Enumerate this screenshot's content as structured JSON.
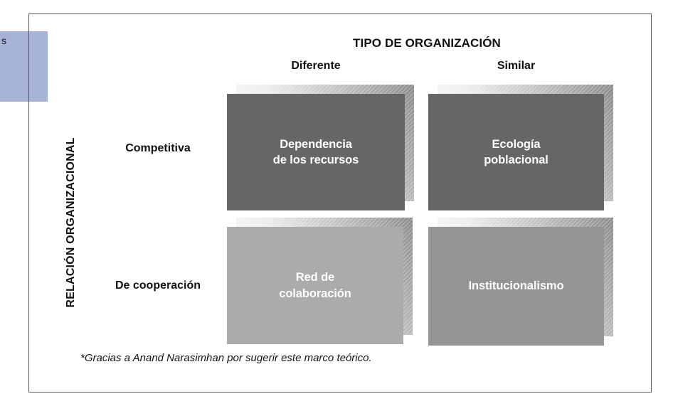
{
  "colors": {
    "frame_border": "#59595b",
    "blue_tab": "#a6b2d6",
    "quadrant_dark": "#666666",
    "quadrant_light": "#ababab",
    "quadrant_medium": "#959595",
    "cell_text": "#ffffff"
  },
  "margin_fragment": {
    "text": "s"
  },
  "diagram": {
    "title": "TIPO DE ORGANIZACIÓN",
    "columns": [
      {
        "label": "Diferente"
      },
      {
        "label": "Similar"
      }
    ],
    "row_axis_title": "RELACIÓN ORGANIZACIONAL",
    "rows": [
      {
        "label": "Competitiva"
      },
      {
        "label": "De cooperación"
      }
    ],
    "cells": [
      {
        "row": "Competitiva",
        "column": "Diferente",
        "label": "Dependencia\nde los recursos"
      },
      {
        "row": "Competitiva",
        "column": "Similar",
        "label": "Ecología\npoblacional"
      },
      {
        "row": "De cooperación",
        "column": "Diferente",
        "label": "Red de\ncolaboración"
      },
      {
        "row": "De cooperación",
        "column": "Similar",
        "label": "Institucionalismo"
      }
    ],
    "footnote": "*Gracias a Anand Narasimhan por sugerir este marco teórico."
  }
}
